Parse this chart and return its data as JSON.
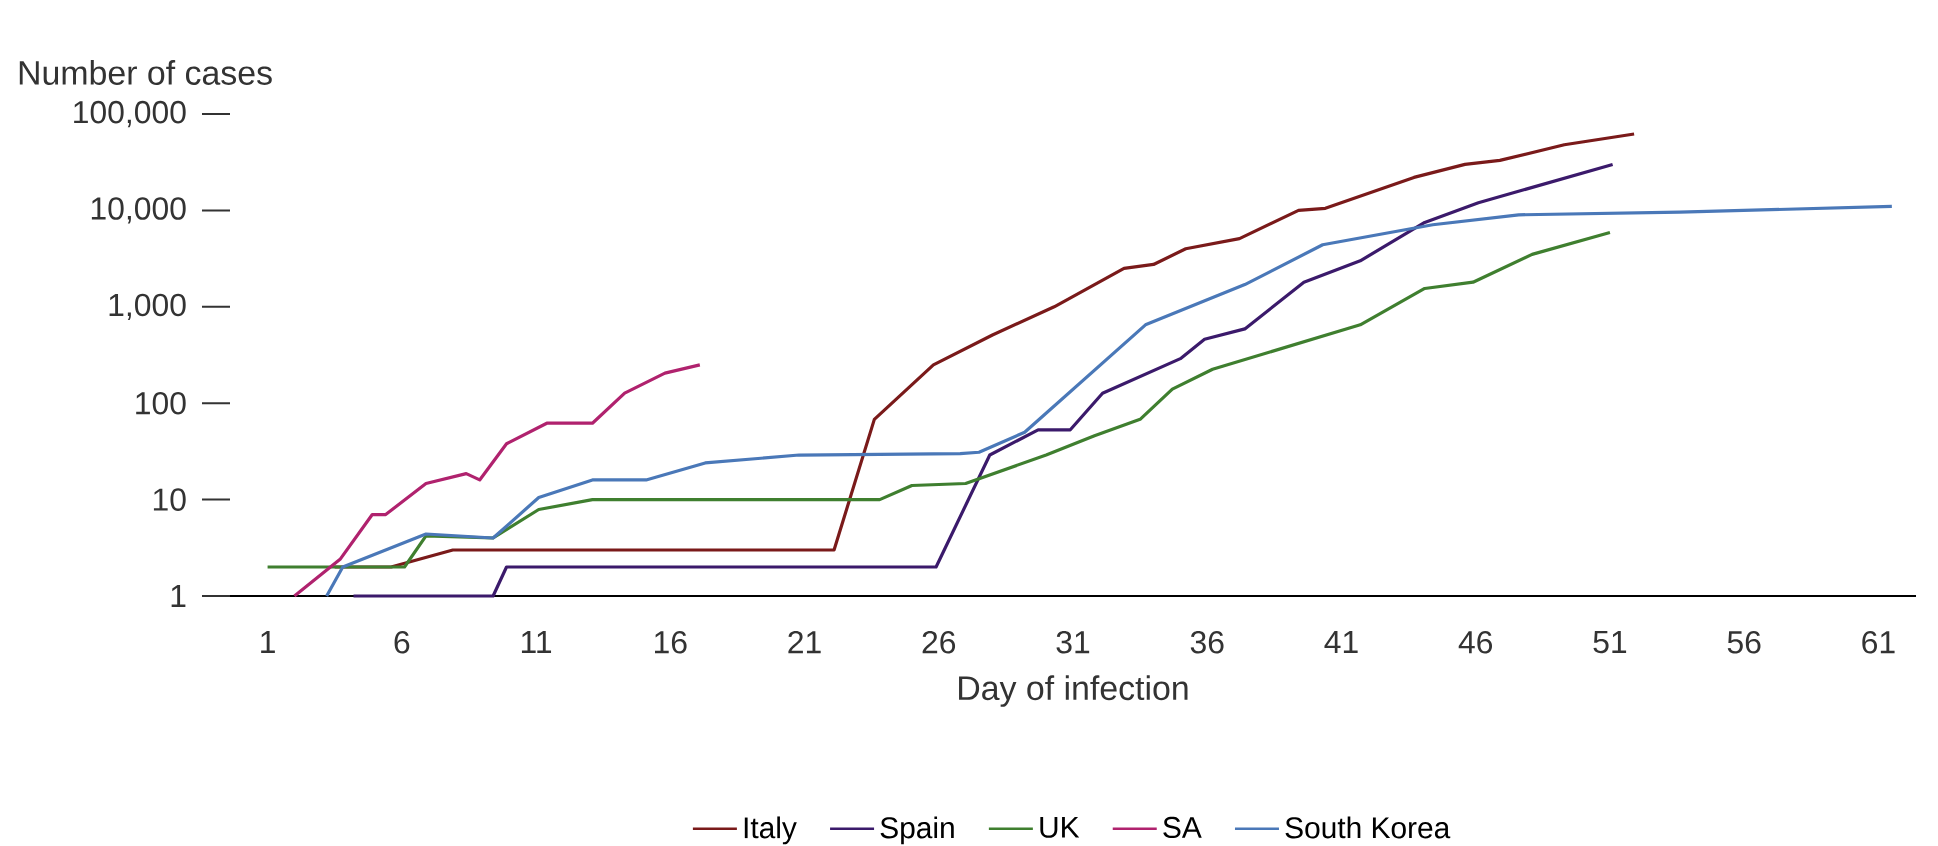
{
  "chart_data": {
    "type": "line",
    "xlabel": "Day of infection",
    "ylabel": "Number of cases",
    "log": "y",
    "grid": false,
    "legend": "bottom",
    "marker": "none",
    "line_style": "solid",
    "xlim": [
      -0.4,
      62.4
    ],
    "xticks": [
      1,
      6,
      11,
      16,
      21,
      26,
      31,
      36,
      41,
      46,
      51,
      56,
      61
    ],
    "ylim": [
      1,
      100000
    ],
    "yticks": [
      1,
      10,
      100,
      {
        "value": 1000,
        "label": "1,000"
      },
      {
        "value": 10000,
        "label": "10,000"
      },
      {
        "value": 100000,
        "label": "100,000"
      }
    ],
    "series": [
      {
        "name": "Italy",
        "color": "#7a1a1a",
        "x": [
          3.5,
          5.6,
          7.9,
          22.1,
          23.6,
          25.8,
          28,
          30.3,
          32.9,
          34,
          35.2,
          37.2,
          39.4,
          40.4,
          43.7,
          45.6,
          46.9,
          49.3,
          51.9
        ],
        "values": [
          2,
          2,
          3,
          3,
          68,
          250,
          510,
          1000,
          2500,
          2750,
          4000,
          5100,
          10000,
          10500,
          22000,
          30000,
          33000,
          48000,
          62000
        ]
      },
      {
        "name": "Spain",
        "color": "#3b1a6b",
        "x": [
          4.2,
          9.4,
          9.9,
          25.9,
          27.9,
          29.7,
          30.9,
          32.1,
          35,
          35.9,
          37.4,
          39.6,
          41.7,
          44.1,
          46.1,
          51.1
        ],
        "values": [
          1,
          1,
          2,
          2,
          29,
          53,
          53,
          127,
          290,
          460,
          590,
          1800,
          3000,
          7500,
          12000,
          30000
        ]
      },
      {
        "name": "UK",
        "color": "#3f7f2f",
        "x": [
          1,
          6.1,
          6.9,
          9.4,
          11.1,
          13.1,
          23.8,
          25,
          27,
          30,
          31.8,
          33.5,
          34.7,
          36.2,
          41.7,
          44.1,
          45.9,
          48.1,
          51
        ],
        "values": [
          2,
          2,
          4.2,
          4,
          7.9,
          10,
          10,
          14,
          14.7,
          29,
          46,
          68,
          140,
          225,
          650,
          1550,
          1800,
          3500,
          5900
        ]
      },
      {
        "name": "SA",
        "color": "#b0226e",
        "x": [
          2,
          3.7,
          4.9,
          5.4,
          6.9,
          8.4,
          8.9,
          9.9,
          11.4,
          13.1,
          14.3,
          15.8,
          17.1
        ],
        "values": [
          1,
          2.4,
          7,
          7,
          14.7,
          18.6,
          16,
          38,
          62,
          62,
          127,
          205,
          250
        ]
      },
      {
        "name": "South Korea",
        "color": "#4a78b8",
        "x": [
          3.2,
          3.8,
          6.9,
          9.4,
          11.1,
          13.1,
          15.1,
          17.3,
          20.8,
          26.8,
          27.5,
          29.2,
          33.7,
          37.4,
          40.3,
          44.4,
          47.6,
          53.6,
          61.5
        ],
        "values": [
          1,
          2,
          4.4,
          4,
          10.5,
          16,
          16,
          24,
          29,
          30,
          31,
          50,
          650,
          1700,
          4400,
          7100,
          9000,
          9600,
          11000
        ]
      }
    ]
  }
}
